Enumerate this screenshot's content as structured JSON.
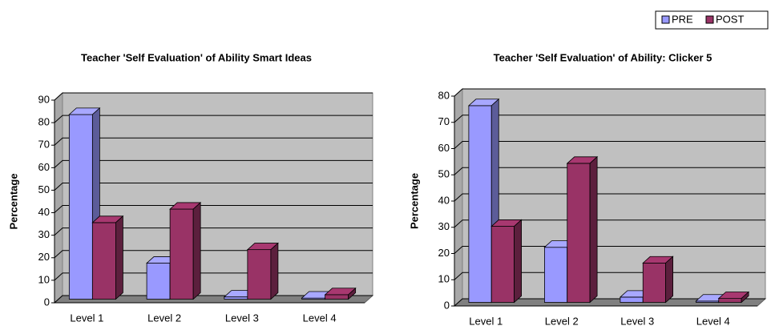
{
  "chart_data": [
    {
      "type": "bar3d",
      "title": "Teacher 'Self Evaluation' of Ability Smart  Ideas",
      "y_label": "Percentage",
      "categories": [
        "Level 1",
        "Level 2",
        "Level 3",
        "Level 4"
      ],
      "series": [
        {
          "name": "PRE",
          "color": "#9999ff",
          "values": [
            82,
            16,
            1,
            0.5
          ]
        },
        {
          "name": "POST",
          "color": "#993366",
          "values": [
            34,
            40,
            22,
            2
          ]
        }
      ],
      "ylim": [
        0,
        90
      ],
      "yticks": [
        0,
        10,
        20,
        30,
        40,
        50,
        60,
        70,
        80,
        90
      ],
      "grid": true
    },
    {
      "type": "bar3d",
      "title": "Teacher 'Self Evaluation' of Ability: Clicker 5",
      "y_label": "Percentage",
      "categories": [
        "Level 1",
        "Level 2",
        "Level 3",
        "Level 4"
      ],
      "series": [
        {
          "name": "PRE",
          "color": "#9999ff",
          "values": [
            75,
            21,
            2,
            0.5
          ]
        },
        {
          "name": "POST",
          "color": "#993366",
          "values": [
            29,
            53,
            15,
            1.5
          ]
        }
      ],
      "ylim": [
        0,
        80
      ],
      "yticks": [
        0,
        10,
        20,
        30,
        40,
        50,
        60,
        70,
        80
      ],
      "grid": true
    }
  ]
}
